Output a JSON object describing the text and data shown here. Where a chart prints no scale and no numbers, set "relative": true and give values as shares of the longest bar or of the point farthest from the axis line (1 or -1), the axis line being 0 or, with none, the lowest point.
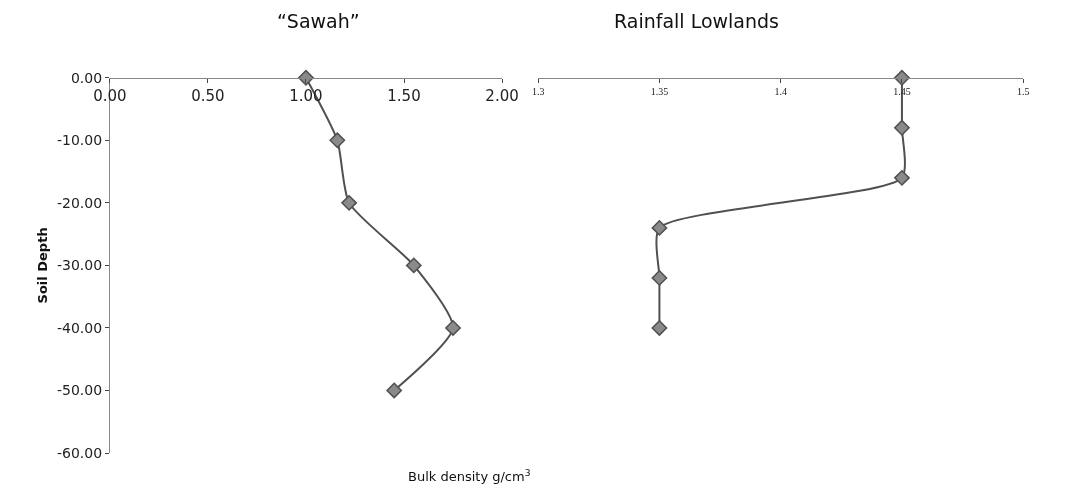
{
  "chart_data": [
    {
      "type": "line",
      "title": "“Sawah”",
      "ylabel": "Soil Depth",
      "xlabel": "Bulk density g/cm$^{3}$",
      "x": [
        1.0,
        1.16,
        1.22,
        1.55,
        1.75,
        1.45
      ],
      "values": [
        0,
        -10,
        -20,
        -30,
        -40,
        -50
      ],
      "color": "#505050",
      "marker": "diamond",
      "xlim": [
        0,
        2
      ],
      "xticks": [
        {
          "value": 0,
          "label": "0.00"
        },
        {
          "value": 0.5,
          "label": "0.50"
        },
        {
          "value": 1,
          "label": "1.00"
        },
        {
          "value": 1.5,
          "label": "1.50"
        },
        {
          "value": 2,
          "label": "2.00"
        }
      ],
      "ylim": [
        -60,
        0
      ],
      "yticks": [
        {
          "value": 0,
          "label": "0.00"
        },
        {
          "value": -10,
          "label": "-10.00"
        },
        {
          "value": -20,
          "label": "-20.00"
        },
        {
          "value": -30,
          "label": "-30.00"
        },
        {
          "value": -40,
          "label": "-40.00"
        },
        {
          "value": -50,
          "label": "-50.00"
        },
        {
          "value": -60,
          "label": "-60.00"
        }
      ]
    },
    {
      "type": "line",
      "title": "Rainfall Lowlands",
      "relative": true,
      "x": [
        1.45,
        1.45,
        1.45,
        1.35,
        1.35,
        1.35
      ],
      "values": [
        0,
        -0.2,
        -0.4,
        -0.6,
        -0.8,
        -1.0
      ],
      "color": "#505050",
      "marker": "diamond",
      "xlim": [
        1.3,
        1.5
      ],
      "xticks": [
        1.3,
        1.35,
        1.4,
        1.45,
        1.5
      ],
      "tick_labels": "x"
    }
  ]
}
